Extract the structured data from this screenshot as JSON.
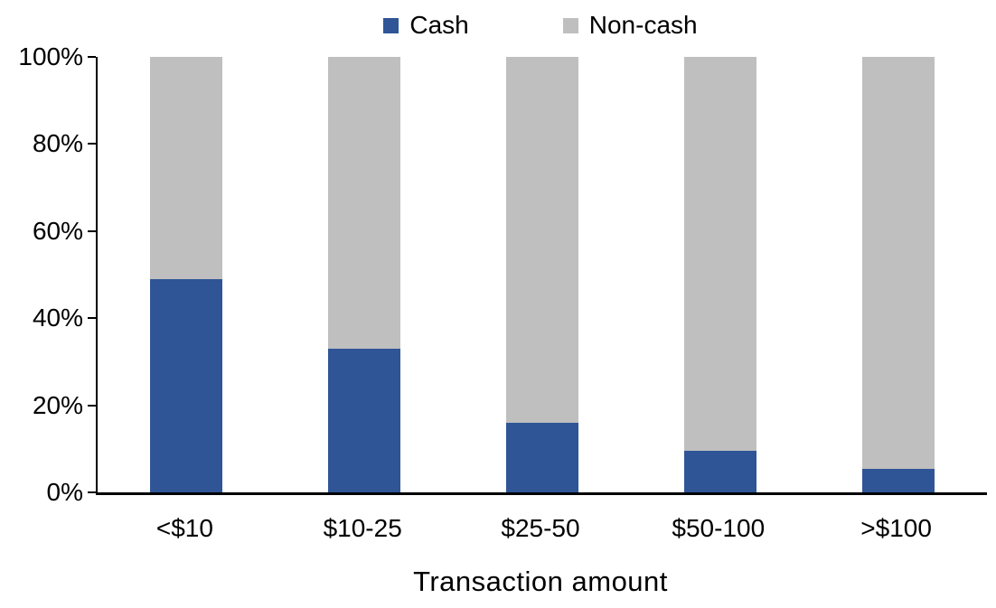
{
  "chart_data": {
    "type": "bar",
    "stacked": true,
    "orientation": "vertical",
    "title": "",
    "xlabel": "Transaction amount",
    "ylabel": "",
    "categories": [
      "<$10",
      "$10-25",
      "$25-50",
      "$50-100",
      ">$100"
    ],
    "series": [
      {
        "name": "Cash",
        "color": "#2F5597",
        "values": [
          49,
          33,
          16,
          9.5,
          5.5
        ]
      },
      {
        "name": "Non-cash",
        "color": "#BFBFBF",
        "values": [
          51,
          67,
          84,
          90.5,
          94.5
        ]
      }
    ],
    "ylim": [
      0,
      100
    ],
    "ytick_values": [
      0,
      20,
      40,
      60,
      80,
      100
    ],
    "ytick_labels": [
      "0%",
      "20%",
      "40%",
      "60%",
      "80%",
      "100%"
    ],
    "legend_position": "top-center",
    "grid": false,
    "axis_color": "#000000",
    "background_color": "#FFFFFF"
  }
}
